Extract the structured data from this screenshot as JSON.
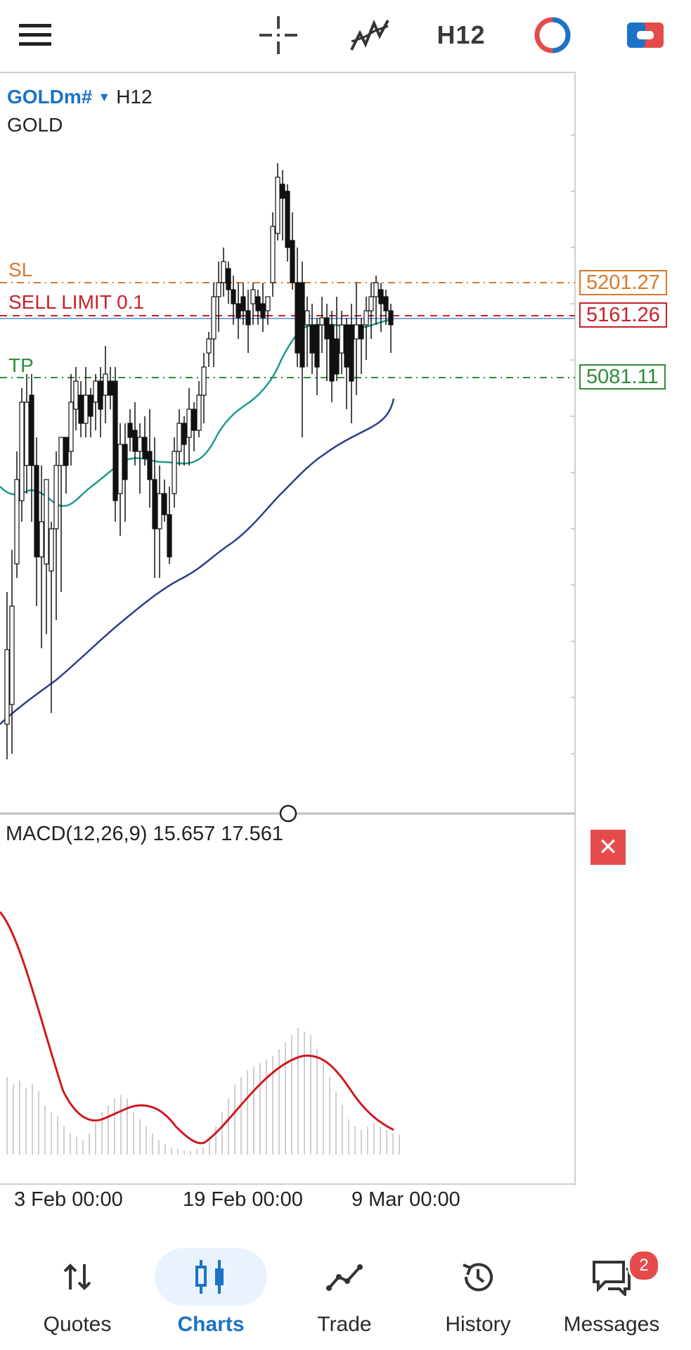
{
  "toolbar": {
    "menu_icon": "hamburger-icon",
    "crosshair_icon": "crosshair-icon",
    "indicators_icon": "indicator-icon",
    "timeframe": "H12",
    "oneclick_icon": "one-click-trading-icon",
    "account_icon": "trade-account-icon"
  },
  "chart": {
    "symbol": "GOLDm#",
    "timeframe": "H12",
    "description": "GOLD",
    "orders": {
      "sl": {
        "label": "SL",
        "price": "5201.27",
        "color": "#d9782d"
      },
      "sell_limit": {
        "label": "SELL LIMIT 0.1",
        "price": "5161.26",
        "color": "#c8202a"
      },
      "tp": {
        "label": "TP",
        "price": "5081.11",
        "color": "#2e8b3a"
      }
    },
    "x_labels": [
      "3 Feb 00:00",
      "19 Feb 00:00",
      "9 Mar 00:00"
    ]
  },
  "macd": {
    "label": "MACD(12,26,9) 15.657 17.561",
    "close_symbol": "✕"
  },
  "chart_data": {
    "type": "candlestick",
    "symbol": "GOLDm#",
    "timeframe": "H12",
    "x_labels": [
      "3 Feb 00:00",
      "19 Feb 00:00",
      "9 Mar 00:00"
    ],
    "horizontal_levels": [
      {
        "name": "SL",
        "value": 5201.27
      },
      {
        "name": "SELL LIMIT 0.1",
        "value": 5161.26
      },
      {
        "name": "TP",
        "value": 5081.11
      }
    ],
    "indicator": {
      "name": "MACD(12,26,9)",
      "values": [
        15.657,
        17.561
      ]
    }
  },
  "nav": {
    "items": [
      {
        "label": "Quotes",
        "icon": "quotes-icon",
        "active": false
      },
      {
        "label": "Charts",
        "icon": "charts-icon",
        "active": true
      },
      {
        "label": "Trade",
        "icon": "trade-icon",
        "active": false
      },
      {
        "label": "History",
        "icon": "history-icon",
        "active": false
      },
      {
        "label": "Messages",
        "icon": "messages-icon",
        "active": false,
        "badge": "2"
      }
    ]
  }
}
